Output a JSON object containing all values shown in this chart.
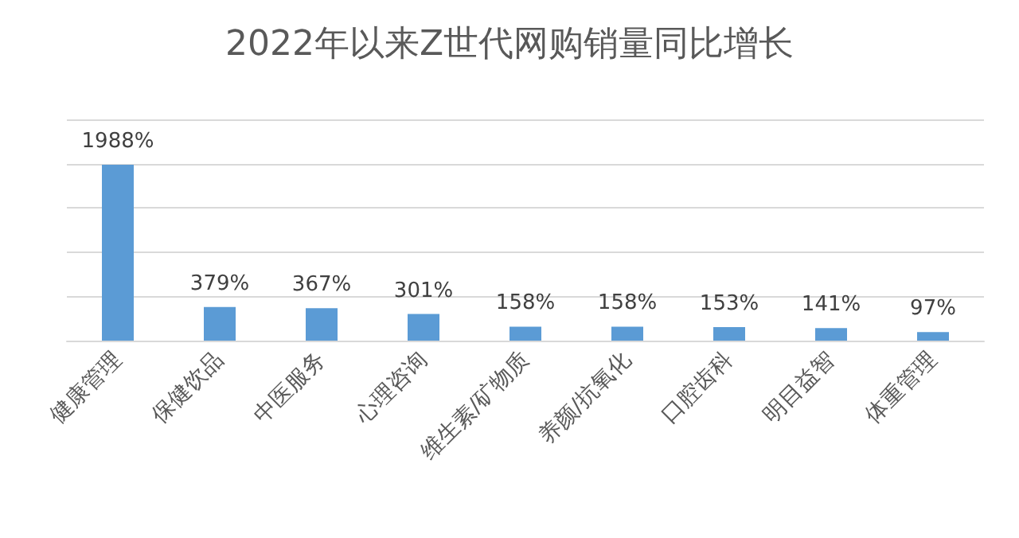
{
  "chart_data": {
    "type": "bar",
    "title": "2022年以来Z世代网购销量同比增长",
    "categories": [
      "健康管理",
      "保健饮品",
      "中医服务",
      "心理咨询",
      "维生素/矿物质",
      "养颜/抗氧化",
      "口腔齿科",
      "明目益智",
      "体重管理"
    ],
    "values": [
      1988,
      379,
      367,
      301,
      158,
      158,
      153,
      141,
      97
    ],
    "value_labels": [
      "1988%",
      "379%",
      "367%",
      "301%",
      "158%",
      "158%",
      "153%",
      "141%",
      "97%"
    ],
    "color": "#5b9bd5",
    "ylim": [
      0,
      2500
    ],
    "yticks": [
      {
        "value": 0,
        "label": null
      },
      {
        "value": 500,
        "label": null
      },
      {
        "value": 1000,
        "label": null
      },
      {
        "value": 1500,
        "label": null
      },
      {
        "value": 2000,
        "label": null
      },
      {
        "value": 2500,
        "label": null
      }
    ],
    "tick_labels": "x",
    "grid": "y"
  }
}
